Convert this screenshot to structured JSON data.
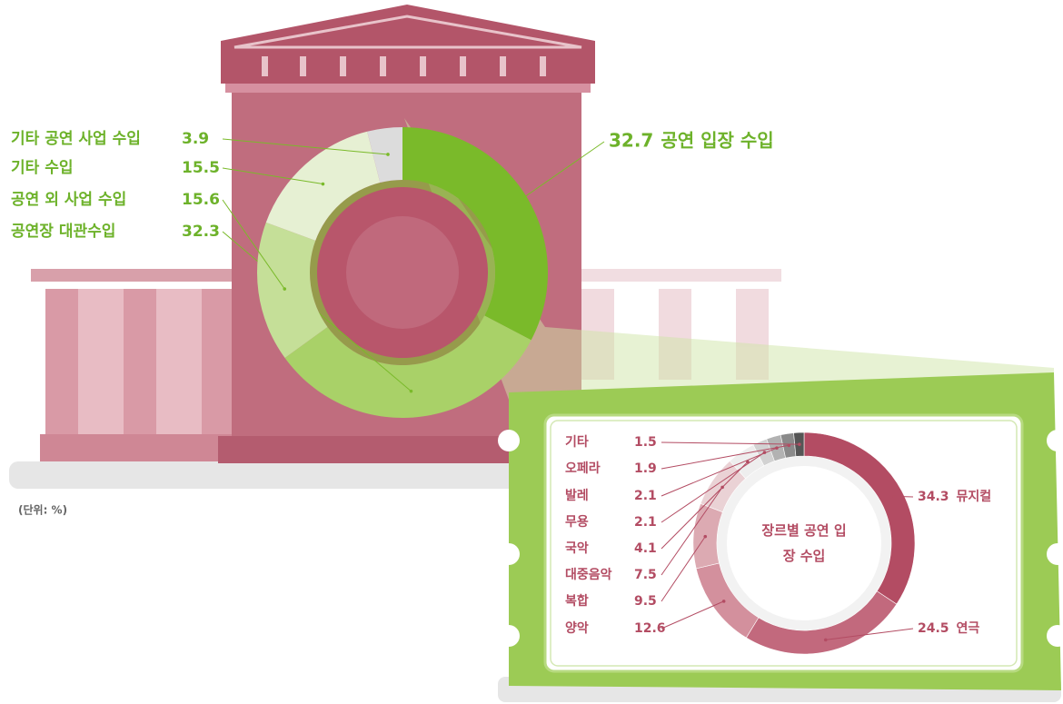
{
  "unit_note": "(단위: %)",
  "chart_data": [
    {
      "type": "pie",
      "donut": true,
      "categories": [
        "공연 입장 수입",
        "공연장 대관수입",
        "공연 외 사업 수입",
        "기타 수입",
        "기타 공연 사업 수입"
      ],
      "values": [
        32.7,
        32.3,
        15.6,
        15.5,
        3.9
      ],
      "colors": [
        "#7aba2a",
        "#a9d168",
        "#c5df98",
        "#e6f0d3",
        "#dcdcdc"
      ]
    },
    {
      "type": "pie",
      "donut": true,
      "title": "장르별 공연 입장 수입",
      "categories": [
        "뮤지컬",
        "연극",
        "양악",
        "복합",
        "대중음악",
        "국악",
        "무용",
        "발레",
        "오페라",
        "기타"
      ],
      "values": [
        34.3,
        24.5,
        12.6,
        9.5,
        7.5,
        4.1,
        2.1,
        2.1,
        1.9,
        1.5
      ],
      "colors": [
        "#b34c63",
        "#c2697d",
        "#d3909d",
        "#dcaab2",
        "#ead2d5",
        "#eeeeee",
        "#d2d2d2",
        "#b2b2b2",
        "#8a8a8a",
        "#555555"
      ]
    }
  ]
}
